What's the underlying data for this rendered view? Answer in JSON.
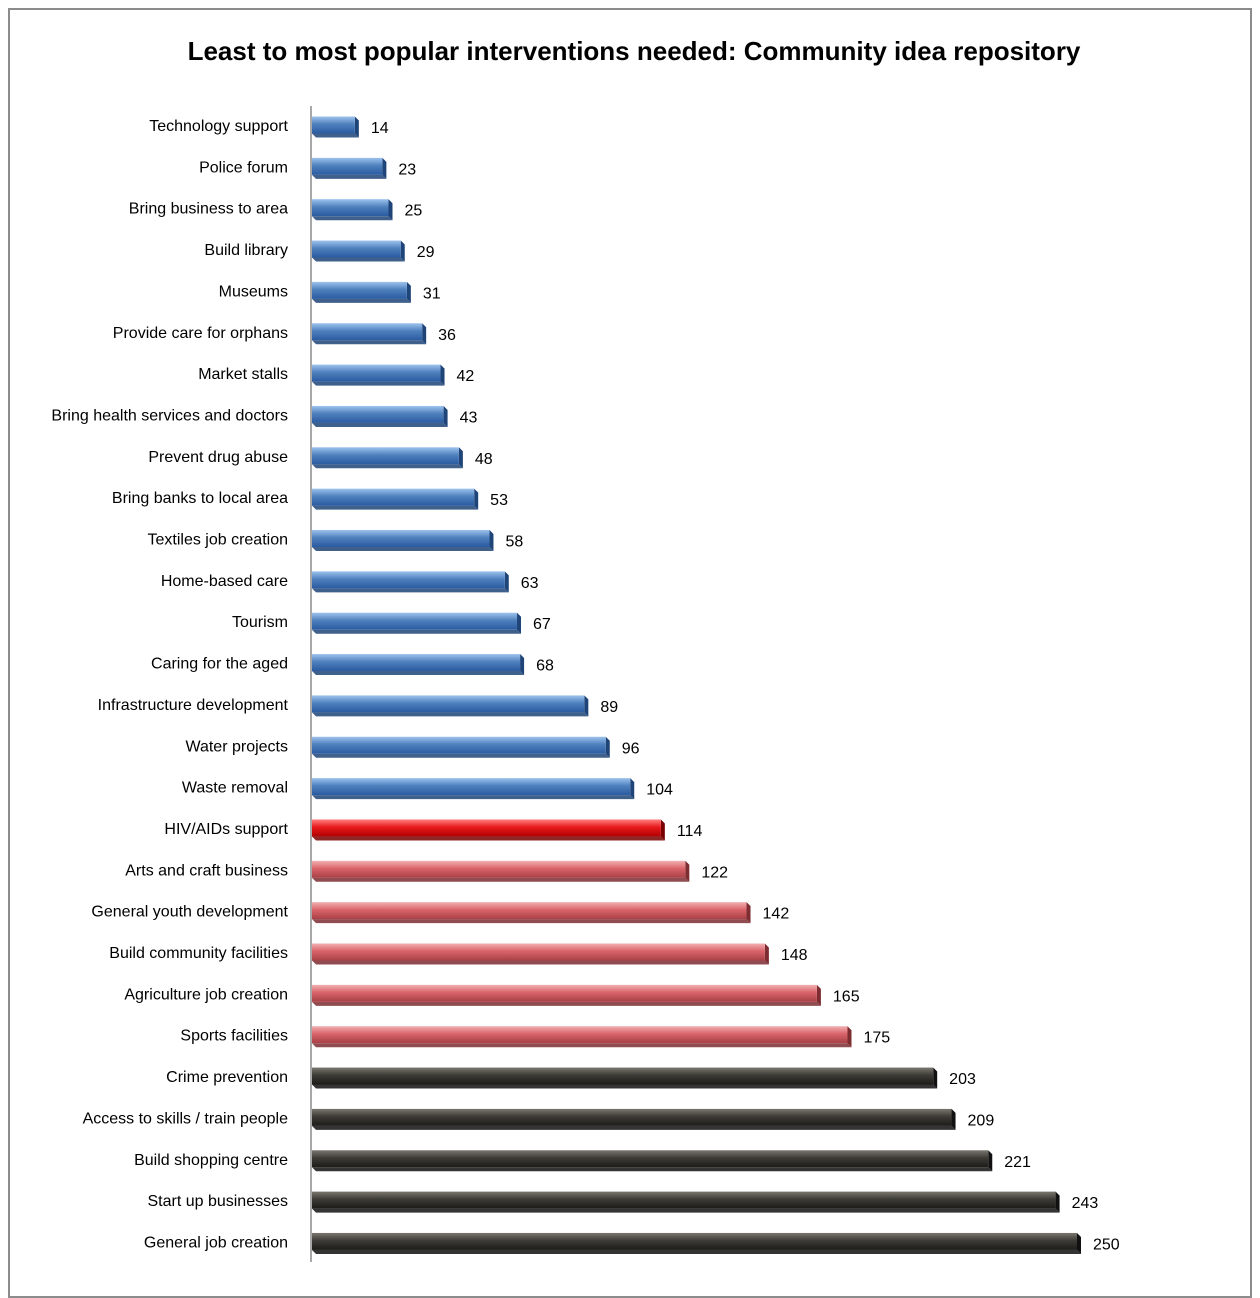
{
  "chart_data": {
    "type": "bar",
    "orientation": "horizontal",
    "title": "Least to most popular interventions needed: Community idea repository",
    "xlabel": "",
    "ylabel": "",
    "xlim": [
      0,
      250
    ],
    "grid": false,
    "legend": "none",
    "categories": [
      "Technology support",
      "Police forum",
      "Bring business to area",
      "Build library",
      "Museums",
      "Provide care for orphans",
      "Market stalls",
      "Bring health services and doctors",
      "Prevent drug abuse",
      "Bring banks to local area",
      "Textiles job creation",
      "Home-based care",
      "Tourism",
      "Caring for the aged",
      "Infrastructure development",
      "Water projects",
      "Waste removal",
      "HIV/AIDs support",
      "Arts and craft business",
      "General youth development",
      "Build community facilities",
      "Agriculture job creation",
      "Sports facilities",
      "Crime prevention",
      "Access to skills / train people",
      "Build shopping centre",
      "Start up businesses",
      "General job creation"
    ],
    "values": [
      14,
      23,
      25,
      29,
      31,
      36,
      42,
      43,
      48,
      53,
      58,
      63,
      67,
      68,
      89,
      96,
      104,
      114,
      122,
      142,
      148,
      165,
      175,
      203,
      209,
      221,
      243,
      250
    ],
    "bar_colors": [
      "#4f81bd",
      "#4f81bd",
      "#4f81bd",
      "#4f81bd",
      "#4f81bd",
      "#4f81bd",
      "#4f81bd",
      "#4f81bd",
      "#4f81bd",
      "#4f81bd",
      "#4f81bd",
      "#4f81bd",
      "#4f81bd",
      "#4f81bd",
      "#4f81bd",
      "#4f81bd",
      "#4f81bd",
      "#e8191c",
      "#d9646a",
      "#d9646a",
      "#d9646a",
      "#d9646a",
      "#d9646a",
      "#3d3b36",
      "#3d3b36",
      "#3d3b36",
      "#3d3b36",
      "#3d3b36"
    ]
  }
}
